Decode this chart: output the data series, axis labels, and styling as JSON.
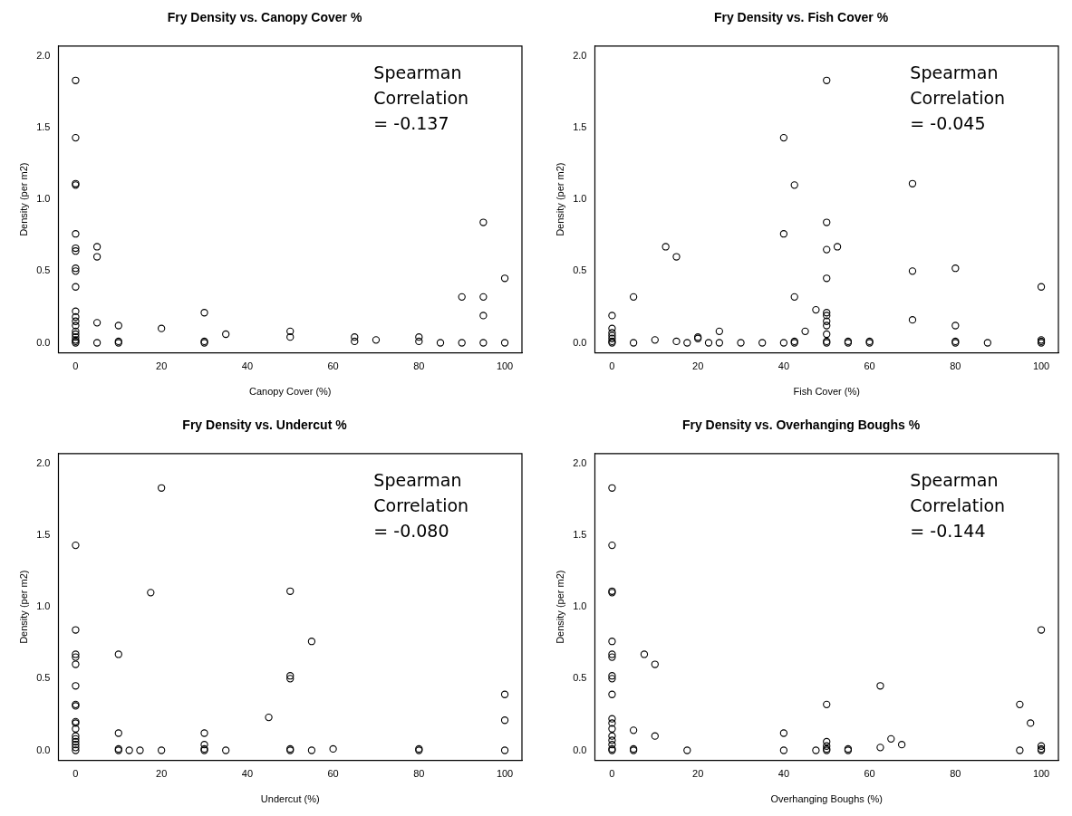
{
  "chart_data": [
    {
      "type": "scatter",
      "title": "Fry Density vs. Canopy Cover %",
      "xlabel": "Canopy Cover (%)",
      "ylabel": "Density (per m2)",
      "annotations": [
        "Spearman\nCorrelation\n= -0.137"
      ],
      "color": "#000000",
      "marker": "circle",
      "x": [
        0,
        0,
        0,
        0,
        0,
        0,
        0,
        0,
        0,
        0,
        0,
        0,
        0,
        0,
        0,
        0,
        0,
        0,
        0,
        0,
        5,
        5,
        5,
        5,
        10,
        10,
        10,
        20,
        30,
        30,
        30,
        35,
        50,
        50,
        65,
        65,
        70,
        80,
        80,
        85,
        90,
        90,
        95,
        95,
        95,
        95,
        100,
        100
      ],
      "values": [
        1.83,
        1.43,
        1.11,
        1.1,
        0.76,
        0.66,
        0.64,
        0.52,
        0.5,
        0.39,
        0.22,
        0.18,
        0.15,
        0.12,
        0.08,
        0.06,
        0.04,
        0.02,
        0.01,
        0,
        0.67,
        0.6,
        0.14,
        0,
        0.12,
        0.01,
        0,
        0.1,
        0.21,
        0.01,
        0,
        0.06,
        0.08,
        0.04,
        0.04,
        0.01,
        0.02,
        0.04,
        0.01,
        0,
        0.32,
        0,
        0.84,
        0.32,
        0.19,
        0,
        0.45,
        0
      ],
      "xlim": [
        -4,
        104
      ],
      "ylim": [
        -0.07,
        2.07
      ],
      "xticks": [
        0,
        20,
        40,
        60,
        80,
        100
      ],
      "yticks": [
        {
          "value": 0,
          "label": "0.0"
        },
        {
          "value": 0.5,
          "label": "0.5"
        },
        {
          "value": 1,
          "label": "1.0"
        },
        {
          "value": 1.5,
          "label": "1.5"
        },
        {
          "value": 2,
          "label": "2.0"
        }
      ]
    },
    {
      "type": "scatter",
      "title": "Fry Density vs. Fish Cover %",
      "xlabel": "Fish Cover (%)",
      "ylabel": "Density (per m2)",
      "annotations": [
        "Spearman\nCorrelation\n= -0.045"
      ],
      "color": "#000000",
      "marker": "circle",
      "x": [
        0,
        0,
        0,
        0,
        0,
        0,
        0,
        5,
        5,
        10,
        12.5,
        15,
        15,
        17.5,
        20,
        20,
        22.5,
        25,
        25,
        30,
        35,
        40,
        40,
        40,
        42.5,
        42.5,
        42.5,
        42.5,
        45,
        47.5,
        50,
        50,
        50,
        50,
        50,
        50,
        50,
        50,
        50,
        50,
        50,
        52.5,
        55,
        55,
        60,
        60,
        70,
        70,
        70,
        80,
        80,
        80,
        80,
        87.5,
        100,
        100,
        100,
        100
      ],
      "values": [
        0.19,
        0.1,
        0.07,
        0.05,
        0.03,
        0.01,
        0,
        0.32,
        0,
        0.02,
        0.67,
        0.6,
        0.01,
        0,
        0.04,
        0.03,
        0,
        0.08,
        0,
        0,
        0,
        1.43,
        0.76,
        0,
        1.1,
        0.32,
        0.01,
        0,
        0.08,
        0.23,
        1.83,
        0.84,
        0.65,
        0.45,
        0.21,
        0.19,
        0.15,
        0.12,
        0.06,
        0.01,
        0,
        0.67,
        0.01,
        0,
        0.01,
        0,
        1.11,
        0.5,
        0.16,
        0.52,
        0.12,
        0.01,
        0,
        0,
        0.39,
        0.02,
        0.01,
        0
      ],
      "xlim": [
        -4,
        104
      ],
      "ylim": [
        -0.07,
        2.07
      ],
      "xticks": [
        0,
        20,
        40,
        60,
        80,
        100
      ],
      "yticks": [
        {
          "value": 0,
          "label": "0.0"
        },
        {
          "value": 0.5,
          "label": "0.5"
        },
        {
          "value": 1,
          "label": "1.0"
        },
        {
          "value": 1.5,
          "label": "1.5"
        },
        {
          "value": 2,
          "label": "2.0"
        }
      ]
    },
    {
      "type": "scatter",
      "title": "Fry Density vs. Undercut %",
      "xlabel": "Undercut (%)",
      "ylabel": "Density (per m2)",
      "annotations": [
        "Spearman\nCorrelation\n= -0.080"
      ],
      "color": "#000000",
      "marker": "circle",
      "x": [
        0,
        0,
        0,
        0,
        0,
        0,
        0,
        0,
        0,
        0,
        0,
        0,
        0,
        0,
        0,
        0,
        0,
        10,
        10,
        10,
        10,
        12.5,
        15,
        17.5,
        20,
        20,
        30,
        30,
        30,
        30,
        35,
        45,
        50,
        50,
        50,
        50,
        50,
        55,
        55,
        60,
        80,
        80,
        100,
        100,
        100
      ],
      "values": [
        1.43,
        0.84,
        0.67,
        0.65,
        0.6,
        0.45,
        0.32,
        0.31,
        0.2,
        0.19,
        0.15,
        0.1,
        0.08,
        0.06,
        0.04,
        0.02,
        0,
        0.67,
        0.12,
        0.01,
        0,
        0,
        0,
        1.1,
        1.83,
        0,
        0.12,
        0.04,
        0.01,
        0,
        0,
        0.23,
        1.11,
        0.52,
        0.5,
        0.01,
        0,
        0.76,
        0,
        0.01,
        0.01,
        0,
        0.39,
        0.21,
        0
      ],
      "xlim": [
        -4,
        104
      ],
      "ylim": [
        -0.07,
        2.07
      ],
      "xticks": [
        0,
        20,
        40,
        60,
        80,
        100
      ],
      "yticks": [
        {
          "value": 0,
          "label": "0.0"
        },
        {
          "value": 0.5,
          "label": "0.5"
        },
        {
          "value": 1,
          "label": "1.0"
        },
        {
          "value": 1.5,
          "label": "1.5"
        },
        {
          "value": 2,
          "label": "2.0"
        }
      ]
    },
    {
      "type": "scatter",
      "title": "Fry Density vs. Overhanging Boughs %",
      "xlabel": "Overhanging Boughs (%)",
      "ylabel": "Density (per m2)",
      "annotations": [
        "Spearman\nCorrelation\n= -0.144"
      ],
      "color": "#000000",
      "marker": "circle",
      "x": [
        0,
        0,
        0,
        0,
        0,
        0,
        0,
        0,
        0,
        0,
        0,
        0,
        0,
        0,
        0,
        0,
        0,
        0,
        5,
        5,
        5,
        7.5,
        10,
        10,
        17.5,
        40,
        40,
        47.5,
        50,
        50,
        50,
        50,
        50,
        55,
        55,
        62.5,
        62.5,
        65,
        67.5,
        95,
        95,
        97.5,
        100,
        100,
        100,
        100
      ],
      "values": [
        1.83,
        1.43,
        1.11,
        1.1,
        0.76,
        0.67,
        0.65,
        0.52,
        0.5,
        0.39,
        0.22,
        0.19,
        0.15,
        0.1,
        0.07,
        0.04,
        0.01,
        0,
        0.14,
        0.01,
        0,
        0.67,
        0.6,
        0.1,
        0,
        0.12,
        0,
        0,
        0.32,
        0.06,
        0.03,
        0.01,
        0,
        0.01,
        0,
        0.45,
        0.02,
        0.08,
        0.04,
        0.32,
        0,
        0.19,
        0.84,
        0.03,
        0.01,
        0
      ],
      "xlim": [
        -4,
        104
      ],
      "ylim": [
        -0.07,
        2.07
      ],
      "xticks": [
        0,
        20,
        40,
        60,
        80,
        100
      ],
      "yticks": [
        {
          "value": 0,
          "label": "0.0"
        },
        {
          "value": 0.5,
          "label": "0.5"
        },
        {
          "value": 1,
          "label": "1.0"
        },
        {
          "value": 1.5,
          "label": "1.5"
        },
        {
          "value": 2,
          "label": "2.0"
        }
      ]
    }
  ]
}
